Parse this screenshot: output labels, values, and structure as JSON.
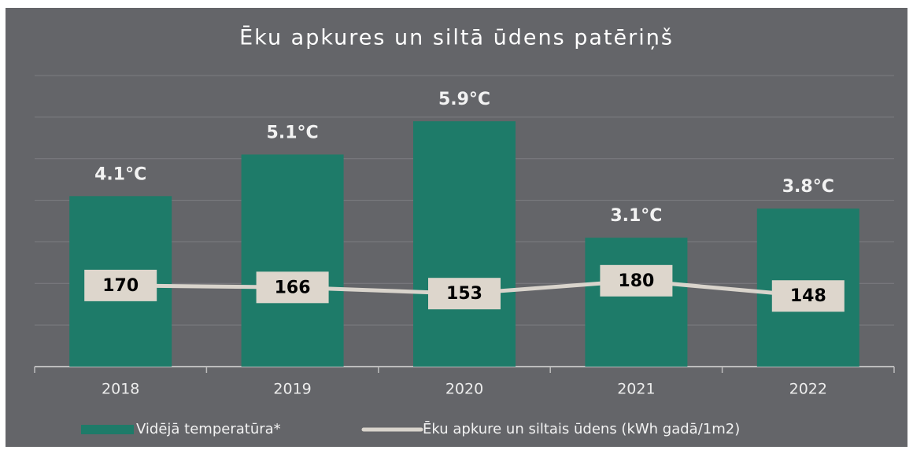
{
  "chart_data": {
    "type": "bar_line",
    "title": "Ēku apkures un siltā ūdens patēriņš",
    "categories": [
      "2018",
      "2019",
      "2020",
      "2021",
      "2022"
    ],
    "series": [
      {
        "name": "Vidējā temperatūra*",
        "type": "bar",
        "color": "#1e7b69",
        "values": [
          4.1,
          5.1,
          5.9,
          3.1,
          3.8
        ],
        "value_labels": [
          "4.1°C",
          "5.1°C",
          "5.9°C",
          "3.1°C",
          "3.8°C"
        ]
      },
      {
        "name": "Ēku apkure un siltais ūdens (kWh gadā/1m2)",
        "type": "line",
        "axis": "y2",
        "color": "#d9d4cc",
        "values": [
          170,
          166,
          153,
          180,
          148
        ]
      }
    ],
    "ylim": [
      0,
      7
    ],
    "yticks": [
      0,
      1,
      2,
      3,
      4,
      5,
      6,
      7
    ],
    "y2lim": [
      0,
      610
    ],
    "grid": true
  }
}
